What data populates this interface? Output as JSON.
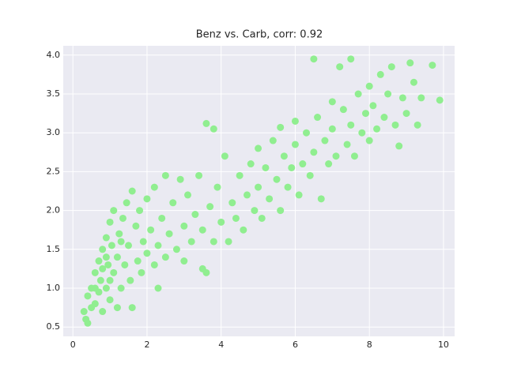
{
  "chart_data": {
    "type": "scatter",
    "title": "Benz vs. Carb, corr: 0.92",
    "color": "#90ee90",
    "grid": true,
    "xlim": [
      -0.26,
      10.3
    ],
    "ylim": [
      0.38,
      4.12
    ],
    "xticks": [
      0,
      2,
      4,
      6,
      8,
      10
    ],
    "yticks": [
      0.5,
      {
        "value": 1.0,
        "label": "1.0"
      },
      1.5,
      {
        "value": 2.0,
        "label": "2.0"
      },
      2.5,
      {
        "value": 3.0,
        "label": "3.0"
      },
      3.5,
      {
        "value": 4.0,
        "label": "4.0"
      }
    ],
    "x": [
      0.3,
      0.35,
      0.4,
      0.4,
      0.5,
      0.5,
      0.6,
      0.6,
      0.7,
      0.7,
      0.75,
      0.8,
      0.8,
      0.9,
      0.9,
      0.95,
      1.0,
      1.0,
      1.05,
      1.1,
      1.1,
      1.2,
      1.2,
      1.25,
      1.3,
      1.35,
      1.4,
      1.45,
      1.5,
      1.55,
      1.6,
      1.6,
      1.7,
      1.75,
      1.8,
      1.85,
      1.9,
      2.0,
      2.0,
      2.1,
      2.2,
      2.2,
      2.3,
      2.4,
      2.5,
      2.5,
      2.6,
      2.7,
      2.8,
      2.9,
      3.0,
      3.0,
      3.1,
      3.2,
      3.3,
      3.4,
      3.5,
      3.5,
      3.6,
      3.6,
      3.7,
      3.8,
      3.8,
      3.9,
      4.0,
      4.1,
      4.2,
      4.3,
      4.4,
      4.5,
      4.6,
      4.7,
      4.8,
      4.9,
      5.0,
      5.0,
      5.1,
      5.2,
      5.3,
      5.4,
      5.5,
      5.6,
      5.6,
      5.7,
      5.8,
      5.9,
      6.0,
      6.0,
      6.1,
      6.2,
      6.3,
      6.4,
      6.5,
      6.5,
      6.6,
      6.7,
      6.8,
      6.9,
      7.0,
      7.0,
      7.1,
      7.2,
      7.3,
      7.4,
      7.5,
      7.5,
      7.6,
      7.7,
      7.8,
      7.9,
      8.0,
      8.0,
      8.1,
      8.2,
      8.3,
      8.4,
      8.5,
      8.6,
      8.7,
      8.8,
      8.9,
      9.0,
      9.1,
      9.2,
      9.3,
      9.4,
      9.7,
      9.9,
      2.3,
      1.3,
      0.9,
      1.0,
      0.8,
      0.6
    ],
    "y": [
      0.7,
      0.6,
      0.55,
      0.9,
      1.0,
      0.75,
      1.2,
      0.8,
      1.35,
      0.95,
      1.1,
      1.5,
      0.7,
      1.65,
      1.0,
      1.3,
      1.85,
      0.85,
      1.55,
      1.2,
      2.0,
      1.4,
      0.75,
      1.7,
      1.0,
      1.9,
      1.3,
      2.1,
      1.55,
      1.1,
      2.25,
      0.75,
      1.8,
      1.35,
      2.0,
      1.2,
      1.6,
      1.45,
      2.15,
      1.75,
      1.3,
      2.3,
      1.55,
      1.9,
      2.45,
      1.4,
      1.7,
      2.1,
      1.5,
      2.4,
      1.8,
      1.35,
      2.2,
      1.6,
      1.95,
      2.45,
      1.25,
      1.75,
      3.12,
      1.2,
      2.05,
      3.05,
      1.6,
      2.3,
      1.85,
      2.7,
      1.6,
      2.1,
      1.9,
      2.45,
      1.75,
      2.2,
      2.6,
      2.0,
      2.8,
      2.3,
      1.9,
      2.55,
      2.15,
      2.9,
      2.4,
      2.0,
      3.07,
      2.7,
      2.3,
      2.55,
      2.85,
      3.15,
      2.2,
      2.6,
      3.0,
      2.45,
      3.95,
      2.75,
      3.2,
      2.15,
      2.9,
      2.6,
      3.4,
      3.05,
      2.7,
      3.85,
      3.3,
      2.85,
      3.95,
      3.1,
      2.7,
      3.5,
      3.0,
      3.25,
      3.6,
      2.9,
      3.35,
      3.05,
      3.75,
      3.2,
      3.5,
      3.85,
      3.1,
      2.83,
      3.45,
      3.25,
      3.9,
      3.65,
      3.1,
      3.45,
      3.87,
      3.42,
      1.0,
      1.6,
      1.4,
      1.1,
      1.25,
      1.0
    ]
  }
}
